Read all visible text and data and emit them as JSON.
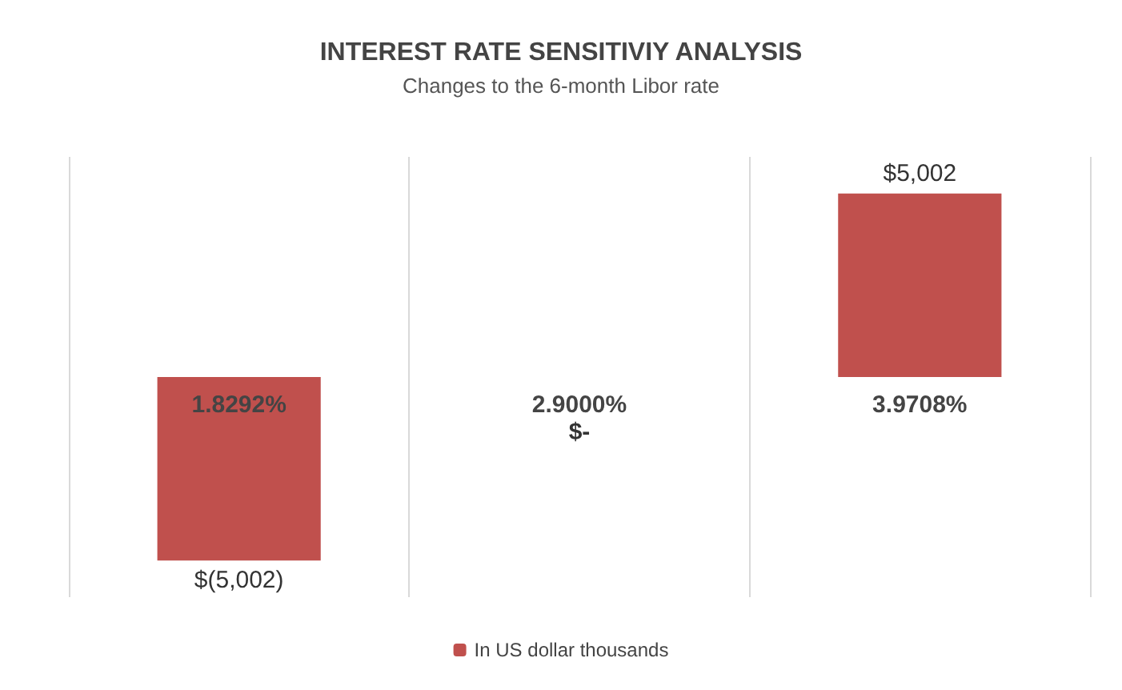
{
  "chart_data": {
    "type": "bar",
    "title": "INTEREST RATE SENSITIVIY ANALYSIS",
    "subtitle": "Changes to the 6-month Libor rate",
    "categories": [
      "1.8292%",
      "2.9000%",
      "3.9708%"
    ],
    "series": [
      {
        "name": "In US dollar thousands",
        "color": "#c0504d",
        "values": [
          -5002,
          0,
          5002
        ],
        "value_labels": [
          "$(5,002)",
          "$-",
          "$5,002"
        ]
      }
    ],
    "ylim": [
      -6000,
      6000
    ],
    "grid": "x",
    "legend": "bottom"
  }
}
